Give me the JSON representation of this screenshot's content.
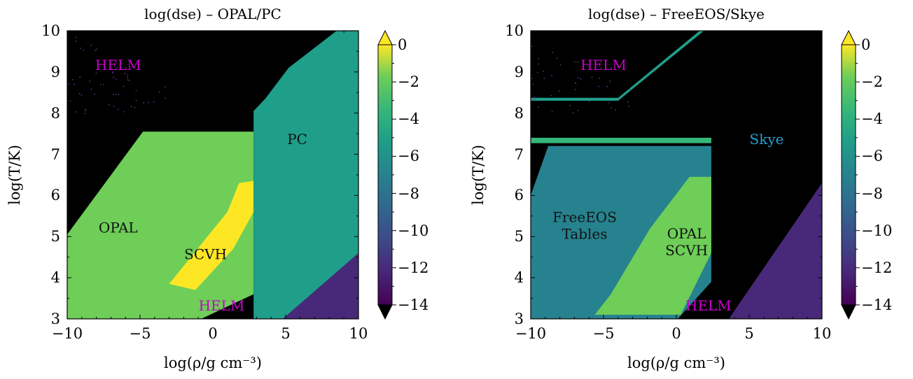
{
  "chart_data": [
    {
      "type": "heatmap",
      "title": "log(dse) – OPAL/PC",
      "xlabel": "log(ρ/g cm⁻³)",
      "ylabel": "log(T/K)",
      "xlim": [
        -10,
        10
      ],
      "ylim": [
        3,
        10
      ],
      "x_ticks": [
        "−10",
        "−5",
        "0",
        "5",
        "10"
      ],
      "y_ticks": [
        "3",
        "4",
        "5",
        "6",
        "7",
        "8",
        "9",
        "10"
      ],
      "colorbar": {
        "colormap": "viridis",
        "range": [
          -14,
          0
        ],
        "ticks": [
          "0",
          "−2",
          "−4",
          "−6",
          "−8",
          "−10",
          "−12",
          "−14"
        ],
        "extend": "both"
      },
      "colors": {
        "background": "#000000",
        "under": "#440154",
        "over": "#fde725"
      },
      "region_labels": [
        {
          "text": "HELM",
          "color": "#cc00cc",
          "x": -6.5,
          "y": 9.05
        },
        {
          "text": "OPAL",
          "color": "#111111",
          "x": -6.5,
          "y": 5.1
        },
        {
          "text": "SCVH",
          "color": "#111111",
          "x": -0.5,
          "y": 4.45
        },
        {
          "text": "PC",
          "color": "#111111",
          "x": 5.8,
          "y": 7.25
        },
        {
          "text": "HELM",
          "color": "#cc00cc",
          "x": 0.6,
          "y": 3.2
        }
      ],
      "regions": [
        {
          "name": "opal",
          "polygon": [
            [
              -10,
              3
            ],
            [
              -10,
              5.05
            ],
            [
              -4.8,
              7.55
            ],
            [
              2.8,
              7.55
            ],
            [
              2.8,
              3.6
            ],
            [
              -0.8,
              3.0
            ]
          ],
          "value": -2.2
        },
        {
          "name": "scvh",
          "polygon": [
            [
              -3,
              3.85
            ],
            [
              1,
              5.6
            ],
            [
              1.8,
              6.3
            ],
            [
              2.8,
              6.35
            ],
            [
              2.8,
              5.6
            ],
            [
              1.4,
              4.7
            ],
            [
              -1.2,
              3.7
            ]
          ],
          "value": -0.5
        },
        {
          "name": "pc",
          "polygon": [
            [
              2.8,
              3
            ],
            [
              2.8,
              8.05
            ],
            [
              3.6,
              8.35
            ],
            [
              5.2,
              9.1
            ],
            [
              8.5,
              10
            ],
            [
              10,
              10
            ],
            [
              10,
              3
            ]
          ],
          "value": -5
        },
        {
          "name": "pc-low",
          "polygon": [
            [
              4.8,
              3
            ],
            [
              10,
              3
            ],
            [
              10,
              4.6
            ]
          ],
          "value": -12
        }
      ]
    },
    {
      "type": "heatmap",
      "title": "log(dse) – FreeEOS/Skye",
      "xlabel": "log(ρ/g cm⁻³)",
      "ylabel": "log(T/K)",
      "xlim": [
        -10,
        10
      ],
      "ylim": [
        3,
        10
      ],
      "x_ticks": [
        "−10",
        "−5",
        "0",
        "5",
        "10"
      ],
      "y_ticks": [
        "3",
        "4",
        "5",
        "6",
        "7",
        "8",
        "9",
        "10"
      ],
      "colorbar": {
        "colormap": "viridis",
        "range": [
          -14,
          0
        ],
        "ticks": [
          "0",
          "−2",
          "−4",
          "−6",
          "−8",
          "−10",
          "−12",
          "−14"
        ],
        "extend": "both"
      },
      "colors": {
        "background": "#000000",
        "under": "#440154",
        "over": "#fde725"
      },
      "region_labels": [
        {
          "text": "HELM",
          "color": "#cc00cc",
          "x": -5,
          "y": 9.05
        },
        {
          "text": "Skye",
          "color": "#2a9fd6",
          "x": 6.2,
          "y": 7.25
        },
        {
          "text": "FreeEOS\nTables",
          "color": "#111111",
          "x": -6.3,
          "y": 5.35
        },
        {
          "text": "OPAL\nSCVH",
          "color": "#111111",
          "x": 0.7,
          "y": 4.95
        },
        {
          "text": "HELM",
          "color": "#cc00cc",
          "x": 2.2,
          "y": 3.2
        }
      ],
      "regions": [
        {
          "name": "freeeos",
          "polygon": [
            [
              -10,
              3.2
            ],
            [
              -10,
              6.0
            ],
            [
              -8.8,
              7.2
            ],
            [
              2.4,
              7.2
            ],
            [
              2.4,
              3.9
            ],
            [
              0.1,
              3.0
            ],
            [
              -10,
              3.0
            ]
          ],
          "value": -7
        },
        {
          "name": "opal-scvh",
          "polygon": [
            [
              -5.6,
              3.1
            ],
            [
              -4.5,
              3.6
            ],
            [
              -1.8,
              5.2
            ],
            [
              0.9,
              6.45
            ],
            [
              2.4,
              6.45
            ],
            [
              2.4,
              4.6
            ],
            [
              0.3,
              3.1
            ]
          ],
          "value": -2.5
        },
        {
          "name": "skye-low",
          "polygon": [
            [
              3.6,
              3
            ],
            [
              10,
              3
            ],
            [
              10,
              6.3
            ]
          ],
          "value": -12
        },
        {
          "name": "band-upper",
          "polygon": [
            [
              -10,
              8.3
            ],
            [
              -10,
              8.37
            ],
            [
              -4,
              8.37
            ],
            [
              1.6,
              10
            ],
            [
              1.9,
              10
            ],
            [
              -4,
              8.3
            ]
          ],
          "value": -6
        },
        {
          "name": "band-mid",
          "polygon": [
            [
              -10,
              7.27
            ],
            [
              -10,
              7.4
            ],
            [
              2.4,
              7.4
            ],
            [
              2.4,
              7.27
            ]
          ],
          "value": -4
        }
      ]
    }
  ]
}
